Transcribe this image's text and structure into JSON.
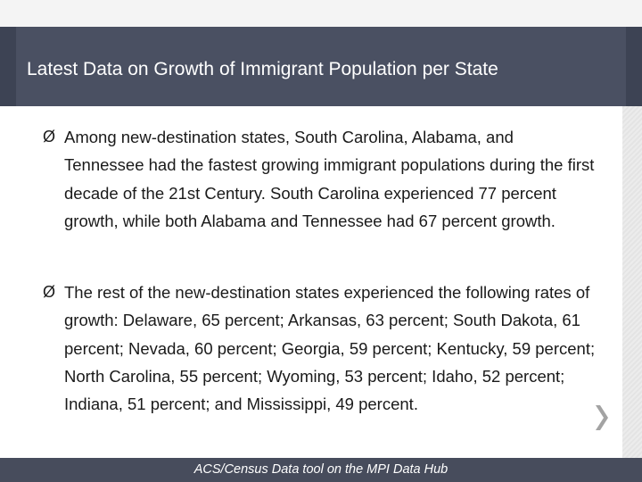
{
  "slide": {
    "title": "Latest Data on Growth of Immigrant Population per State",
    "bullets": [
      {
        "marker": "Ø",
        "text": "Among new-destination states, South Carolina, Alabama, and Tennessee had the fastest growing immigrant populations during the first decade of the 21st Century. South Carolina experienced 77 percent growth, while both Alabama and Tennessee had 67 percent growth."
      },
      {
        "marker": "Ø",
        "text": "The rest of the new-destination states experienced the following rates of growth: Delaware, 65 percent; Arkansas, 63 percent; South Dakota, 61 percent; Nevada, 60 percent; Georgia, 59 percent; Kentucky, 59 percent; North Carolina, 55 percent; Wyoming, 53 percent; Idaho, 52 percent; Indiana, 51 percent; and Mississippi, 49 percent."
      }
    ],
    "footer_source": "ACS/Census Data tool on the MPI Data Hub",
    "next_icon": "chevron-right-icon"
  },
  "colors": {
    "title_band": "#4a5062",
    "footer_band": "#474c5c",
    "chevron": "#a3a3a3"
  }
}
